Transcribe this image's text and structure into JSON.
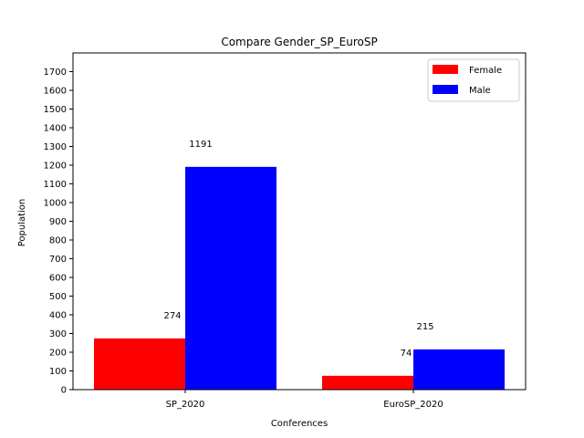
{
  "chart_data": {
    "type": "bar",
    "title": "Compare Gender_SP_EuroSP",
    "xlabel": "Conferences",
    "ylabel": "Population",
    "categories": [
      "SP_2020",
      "EuroSP_2020"
    ],
    "series": [
      {
        "name": "Female",
        "values": [
          274,
          74
        ],
        "color": "#ff0000"
      },
      {
        "name": "Male",
        "values": [
          1191,
          215
        ],
        "color": "#0000ff"
      }
    ],
    "ylim": [
      0,
      1800
    ],
    "yticks": [
      0,
      100,
      200,
      300,
      400,
      500,
      600,
      700,
      800,
      900,
      1000,
      1100,
      1200,
      1300,
      1400,
      1500,
      1600,
      1700
    ],
    "grid": false,
    "legend": "top-right",
    "data_labels": [
      "274",
      "74",
      "1191",
      "215"
    ],
    "ytick_labels": [
      "0",
      "100",
      "200",
      "300",
      "400",
      "500",
      "600",
      "700",
      "800",
      "900",
      "1000",
      "1100",
      "1200",
      "1300",
      "1400",
      "1500",
      "1600",
      "1700"
    ]
  }
}
